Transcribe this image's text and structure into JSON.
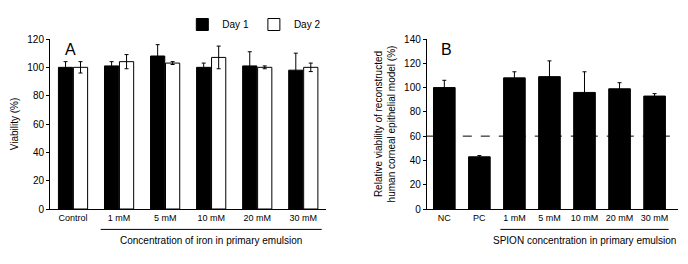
{
  "chart_data": [
    {
      "type": "bar",
      "title": "A",
      "categories": [
        "Control",
        "1 mM",
        "5 mM",
        "10 mM",
        "20 mM",
        "30 mM"
      ],
      "series": [
        {
          "name": "Day 1",
          "color": "#000000",
          "values": [
            100,
            101,
            108,
            100,
            101,
            98
          ],
          "errors": [
            4,
            3,
            8,
            3,
            10,
            12
          ]
        },
        {
          "name": "Day 2",
          "color": "#ffffff",
          "values": [
            100,
            104,
            103,
            107,
            100,
            100
          ],
          "errors": [
            4,
            5,
            1,
            8,
            1,
            3
          ]
        }
      ],
      "x_label": "Concentration of iron in primary emulsion",
      "x_label_span": [
        "1 mM",
        "30 mM"
      ],
      "y_label": "Viability (%)",
      "ylim": [
        0,
        120
      ],
      "yticks": [
        0,
        20,
        40,
        60,
        80,
        100,
        120
      ],
      "legend": "top right",
      "grid": false
    },
    {
      "type": "bar",
      "title": "B",
      "categories": [
        "NC",
        "PC",
        "1 mM",
        "5 mM",
        "10 mM",
        "20 mM",
        "30 mM"
      ],
      "values": [
        100,
        43,
        108,
        109,
        96,
        99,
        93
      ],
      "errors": [
        6,
        1,
        5,
        13,
        17,
        5,
        2
      ],
      "color": "#000000",
      "threshold": 60,
      "line_style": "dashed",
      "x_label": "SPION concentration in primary emulsion",
      "x_label_span": [
        "1 mM",
        "30 mM"
      ],
      "y_label": "Relative viability of reconstructed human corneal epithelial model (%)",
      "ylim": [
        0,
        140
      ],
      "yticks": [
        0,
        20,
        40,
        60,
        80,
        100,
        120,
        140
      ],
      "grid": false
    }
  ]
}
